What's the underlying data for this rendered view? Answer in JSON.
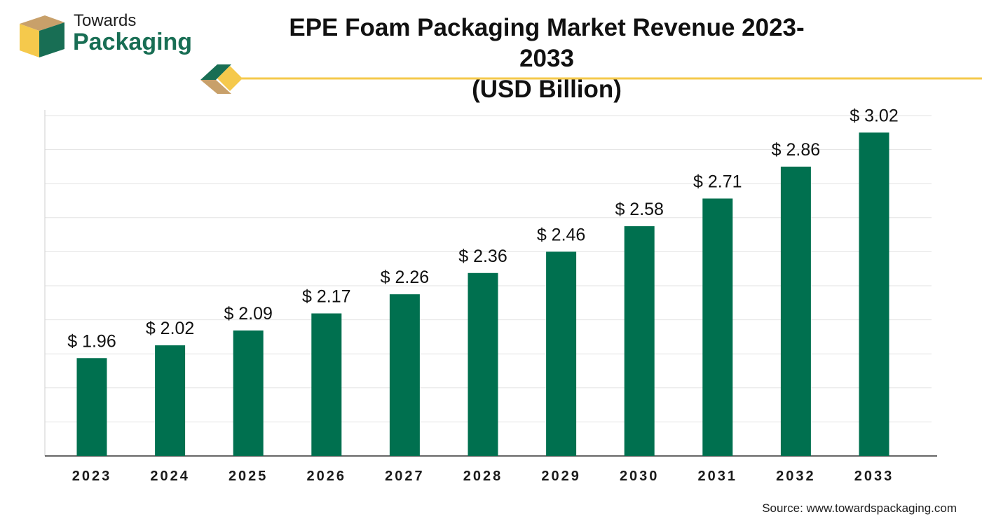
{
  "brand": {
    "name_top": "Towards",
    "name_bottom": "Packaging",
    "colors": {
      "green": "#186e54",
      "gold": "#f5c94c",
      "tan": "#c8a06a"
    }
  },
  "source_text": "Source: www.towardspackaging.com",
  "chart_data": {
    "type": "bar",
    "title": "EPE Foam Packaging Market Revenue 2023-2033",
    "subtitle": "(USD Billion)",
    "categories": [
      "2023",
      "2024",
      "2025",
      "2026",
      "2027",
      "2028",
      "2029",
      "2030",
      "2031",
      "2032",
      "2033"
    ],
    "values": [
      1.96,
      2.02,
      2.09,
      2.17,
      2.26,
      2.36,
      2.46,
      2.58,
      2.71,
      2.86,
      3.02
    ],
    "value_labels": [
      "$ 1.96",
      "$ 2.02",
      "$ 2.09",
      "$ 2.17",
      "$ 2.26",
      "$ 2.36",
      "$ 2.46",
      "$ 2.58",
      "$ 2.71",
      "$ 2.86",
      "$ 3.02"
    ],
    "xlabel": "",
    "ylabel": "",
    "ylim": [
      1.5,
      3.1
    ],
    "grid": true,
    "legend": "none",
    "bar_color": "#00704f",
    "grid_color": "#e3e3e3"
  }
}
